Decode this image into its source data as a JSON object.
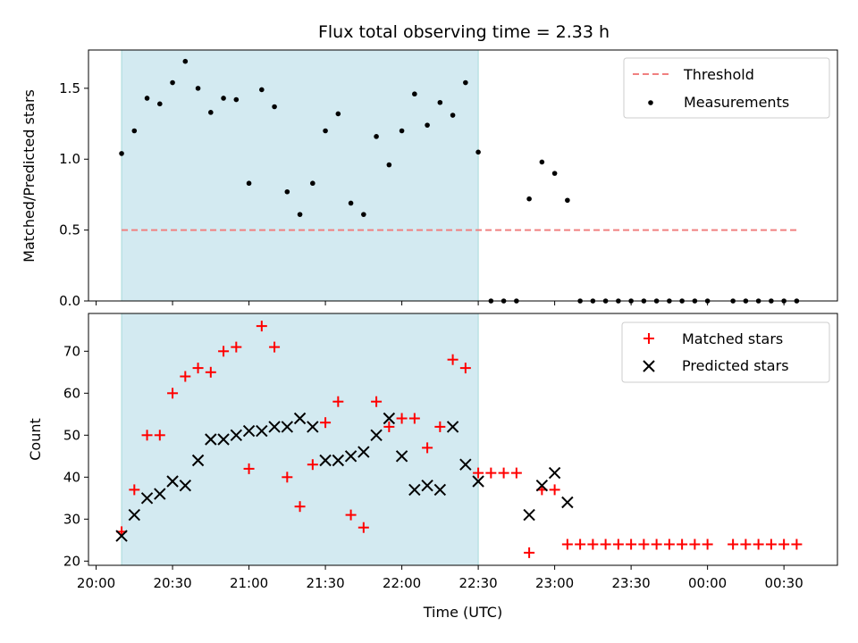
{
  "chart_data": {
    "title": "Flux total observing time = 2.33 h",
    "xlabel": "Time (UTC)",
    "x_ticks": [
      "20:00",
      "20:30",
      "21:00",
      "21:30",
      "22:00",
      "22:30",
      "23:00",
      "23:30",
      "00:00",
      "00:30"
    ],
    "x_tick_minutes": [
      0,
      30,
      60,
      90,
      120,
      150,
      180,
      210,
      240,
      270
    ],
    "xlim_minutes": [
      -3,
      291
    ],
    "highlight_span_minutes": [
      10,
      150
    ],
    "colors": {
      "highlight": "#d3eaf1",
      "highlight_edge": "#a6dadb",
      "threshold": "#f08080",
      "measurement": "#000000",
      "matched": "#ff0000",
      "predicted": "#000000"
    },
    "top": {
      "type": "scatter",
      "ylabel": "Matched/Predicted stars",
      "ylim": [
        0,
        1.77
      ],
      "y_ticks": [
        "0.0",
        "0.5",
        "1.0",
        "1.5"
      ],
      "y_tick_values": [
        0,
        0.5,
        1.0,
        1.5
      ],
      "legend": [
        "Threshold",
        "Measurements"
      ],
      "threshold": {
        "name": "Threshold",
        "value": 0.5,
        "x_range_minutes": [
          10,
          275
        ]
      },
      "measurements": {
        "name": "Measurements",
        "x_minutes": [
          10,
          15,
          20,
          25,
          30,
          35,
          40,
          45,
          50,
          55,
          60,
          65,
          70,
          75,
          80,
          85,
          90,
          95,
          100,
          105,
          110,
          115,
          120,
          125,
          130,
          135,
          140,
          145,
          150,
          155,
          160,
          165,
          170,
          175,
          180,
          185,
          190,
          195,
          200,
          205,
          210,
          215,
          220,
          225,
          230,
          235,
          240,
          250,
          255,
          260,
          265,
          270,
          275
        ],
        "values": [
          1.04,
          1.2,
          1.43,
          1.39,
          1.54,
          1.69,
          1.5,
          1.33,
          1.43,
          1.42,
          0.83,
          1.49,
          1.37,
          0.77,
          0.61,
          0.83,
          1.2,
          1.32,
          0.69,
          0.61,
          1.16,
          0.96,
          1.2,
          1.46,
          1.24,
          1.4,
          1.31,
          1.54,
          1.05,
          0.0,
          0.0,
          0.0,
          0.72,
          0.98,
          0.9,
          0.71,
          0.0,
          0.0,
          0.0,
          0.0,
          0.0,
          0.0,
          0.0,
          0.0,
          0.0,
          0.0,
          0.0,
          0.0,
          0.0,
          0.0,
          0.0,
          0.0,
          0.0
        ]
      }
    },
    "bottom": {
      "type": "scatter",
      "ylabel": "Count",
      "ylim": [
        19,
        79
      ],
      "y_ticks": [
        "20",
        "30",
        "40",
        "50",
        "60",
        "70"
      ],
      "y_tick_values": [
        20,
        30,
        40,
        50,
        60,
        70
      ],
      "legend": [
        "Matched stars",
        "Predicted stars"
      ],
      "series": [
        {
          "name": "Matched stars",
          "x_minutes": [
            10,
            15,
            20,
            25,
            30,
            35,
            40,
            45,
            50,
            55,
            60,
            65,
            70,
            75,
            80,
            85,
            90,
            95,
            100,
            105,
            110,
            115,
            120,
            125,
            130,
            135,
            140,
            145,
            150,
            155,
            160,
            165,
            170,
            175,
            180,
            185,
            190,
            195,
            200,
            205,
            210,
            215,
            220,
            225,
            230,
            235,
            240,
            250,
            255,
            260,
            265,
            270,
            275
          ],
          "values": [
            27,
            37,
            50,
            50,
            60,
            64,
            66,
            65,
            70,
            71,
            42,
            76,
            71,
            40,
            33,
            43,
            53,
            58,
            31,
            28,
            58,
            52,
            54,
            54,
            47,
            52,
            68,
            66,
            41,
            41,
            41,
            41,
            22,
            37,
            37,
            24,
            24,
            24,
            24,
            24,
            24,
            24,
            24,
            24,
            24,
            24,
            24,
            24,
            24,
            24,
            24,
            24,
            24
          ]
        },
        {
          "name": "Predicted stars",
          "x_minutes": [
            10,
            15,
            20,
            25,
            30,
            35,
            40,
            45,
            50,
            55,
            60,
            65,
            70,
            75,
            80,
            85,
            90,
            95,
            100,
            105,
            110,
            115,
            120,
            125,
            130,
            135,
            140,
            145,
            150,
            170,
            175,
            180,
            185
          ],
          "values": [
            26,
            31,
            35,
            36,
            39,
            38,
            44,
            49,
            49,
            50,
            51,
            51,
            52,
            52,
            54,
            52,
            44,
            44,
            45,
            46,
            50,
            54,
            45,
            37,
            38,
            37,
            52,
            43,
            39,
            31,
            38,
            41,
            34
          ]
        }
      ]
    }
  }
}
